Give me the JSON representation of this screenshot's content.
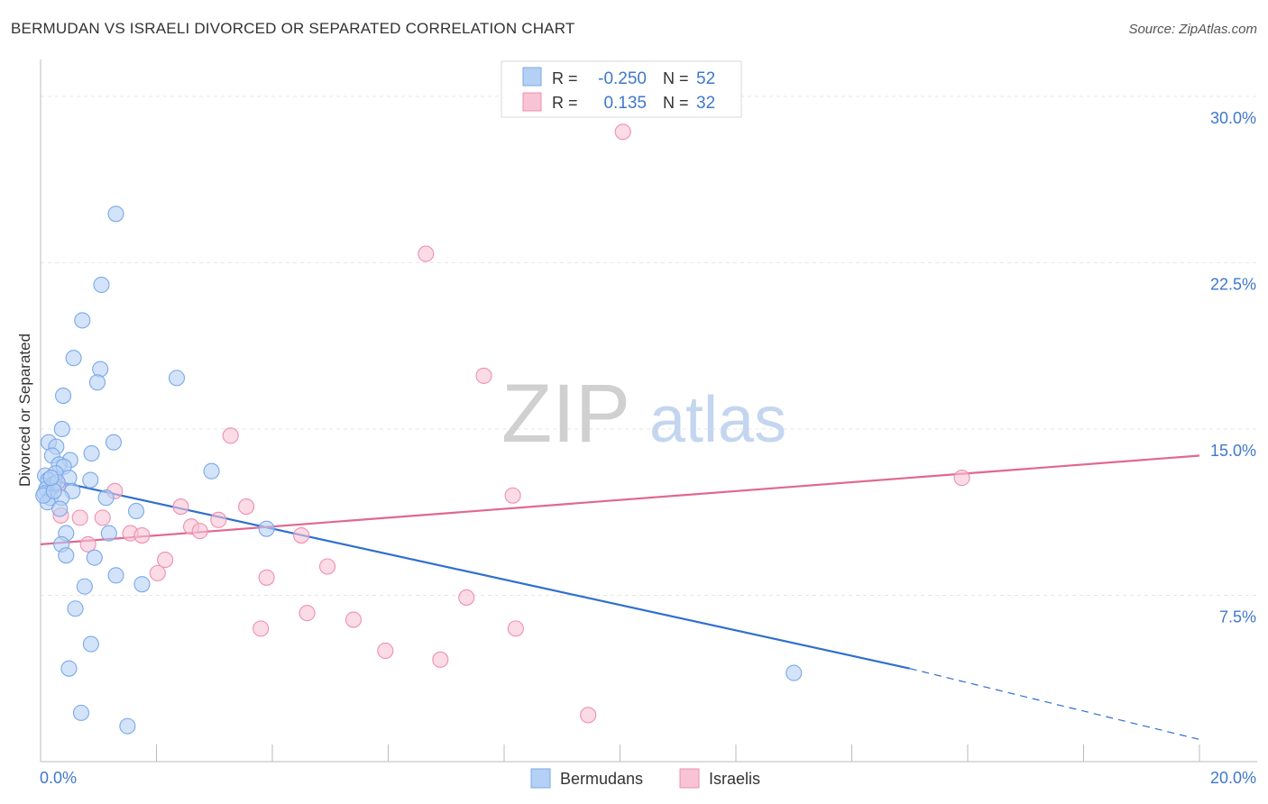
{
  "title": "BERMUDAN VS ISRAELI DIVORCED OR SEPARATED CORRELATION CHART",
  "source": "Source: ZipAtlas.com",
  "watermark": {
    "zip": "ZIP",
    "atlas": "atlas"
  },
  "colors": {
    "blue": "#7aa9e8",
    "blue_fill": "#b5d0f5",
    "blue_line": "#2f6fcf",
    "pink": "#ef8fb0",
    "pink_fill": "#f7c3d5",
    "pink_line": "#e06890",
    "axis_text": "#3f78cc",
    "grid": "#e6e6e6"
  },
  "legend": {
    "rows": [
      {
        "r_label": "R =",
        "r_value": "-0.250",
        "n_label": "N =",
        "n_value": "52"
      },
      {
        "r_label": "R =",
        "r_value": "0.135",
        "n_label": "N =",
        "n_value": "32"
      }
    ]
  },
  "chart_data": {
    "type": "scatter",
    "title": "BERMUDAN VS ISRAELI DIVORCED OR SEPARATED CORRELATION CHART",
    "xlabel": "",
    "ylabel": "Divorced or Separated",
    "xlim": [
      0,
      20
    ],
    "ylim": [
      0,
      31.5
    ],
    "x_ticks": [
      "0.0%",
      "20.0%"
    ],
    "y_ticks": [
      {
        "value": 7.5,
        "label": "7.5%"
      },
      {
        "value": 15.0,
        "label": "15.0%"
      },
      {
        "value": 22.5,
        "label": "22.5%"
      },
      {
        "value": 30.0,
        "label": "30.0%"
      }
    ],
    "series": [
      {
        "name": "Bermudans",
        "r": -0.25,
        "n": 52,
        "trend": {
          "x0": 0.0,
          "y0": 12.8,
          "x1": 15.0,
          "y1": 4.2,
          "dash_to_x": 20.0,
          "dash_to_y": 1.0
        },
        "points": [
          [
            1.3,
            24.7
          ],
          [
            1.05,
            21.5
          ],
          [
            0.72,
            19.9
          ],
          [
            0.57,
            18.2
          ],
          [
            1.03,
            17.7
          ],
          [
            2.35,
            17.3
          ],
          [
            0.98,
            17.1
          ],
          [
            0.39,
            16.5
          ],
          [
            0.37,
            15.0
          ],
          [
            0.14,
            14.4
          ],
          [
            1.26,
            14.4
          ],
          [
            0.27,
            14.2
          ],
          [
            0.88,
            13.9
          ],
          [
            0.2,
            13.8
          ],
          [
            0.51,
            13.6
          ],
          [
            0.32,
            13.4
          ],
          [
            0.4,
            13.3
          ],
          [
            2.95,
            13.1
          ],
          [
            0.08,
            12.9
          ],
          [
            0.26,
            13.0
          ],
          [
            0.49,
            12.8
          ],
          [
            0.13,
            12.7
          ],
          [
            0.86,
            12.7
          ],
          [
            0.22,
            12.5
          ],
          [
            0.1,
            12.3
          ],
          [
            0.55,
            12.2
          ],
          [
            0.07,
            12.1
          ],
          [
            1.13,
            11.9
          ],
          [
            0.17,
            11.9
          ],
          [
            0.36,
            11.9
          ],
          [
            0.12,
            11.7
          ],
          [
            0.33,
            11.4
          ],
          [
            1.65,
            11.3
          ],
          [
            3.9,
            10.5
          ],
          [
            0.44,
            10.3
          ],
          [
            1.18,
            10.3
          ],
          [
            0.36,
            9.8
          ],
          [
            0.44,
            9.3
          ],
          [
            0.93,
            9.2
          ],
          [
            1.3,
            8.4
          ],
          [
            1.75,
            8.0
          ],
          [
            0.76,
            7.9
          ],
          [
            0.6,
            6.9
          ],
          [
            0.87,
            5.3
          ],
          [
            0.49,
            4.2
          ],
          [
            0.7,
            2.2
          ],
          [
            1.5,
            1.6
          ],
          [
            13.0,
            4.0
          ],
          [
            0.05,
            12.0
          ],
          [
            0.29,
            12.6
          ],
          [
            0.23,
            12.2
          ],
          [
            0.18,
            12.8
          ]
        ]
      },
      {
        "name": "Israelis",
        "r": 0.135,
        "n": 32,
        "trend": {
          "x0": 0.0,
          "y0": 9.8,
          "x1": 20.0,
          "y1": 13.8
        },
        "points": [
          [
            10.05,
            28.4
          ],
          [
            6.65,
            22.9
          ],
          [
            7.65,
            17.4
          ],
          [
            3.28,
            14.7
          ],
          [
            15.9,
            12.8
          ],
          [
            0.3,
            12.5
          ],
          [
            1.28,
            12.2
          ],
          [
            8.15,
            12.0
          ],
          [
            2.42,
            11.5
          ],
          [
            3.55,
            11.5
          ],
          [
            0.35,
            11.1
          ],
          [
            0.68,
            11.0
          ],
          [
            1.07,
            11.0
          ],
          [
            3.07,
            10.9
          ],
          [
            2.6,
            10.6
          ],
          [
            2.75,
            10.4
          ],
          [
            1.55,
            10.3
          ],
          [
            1.75,
            10.2
          ],
          [
            4.5,
            10.2
          ],
          [
            0.82,
            9.8
          ],
          [
            2.15,
            9.1
          ],
          [
            4.95,
            8.8
          ],
          [
            2.02,
            8.5
          ],
          [
            3.9,
            8.3
          ],
          [
            7.35,
            7.4
          ],
          [
            4.6,
            6.7
          ],
          [
            5.4,
            6.4
          ],
          [
            3.8,
            6.0
          ],
          [
            8.2,
            6.0
          ],
          [
            5.95,
            5.0
          ],
          [
            6.9,
            4.6
          ],
          [
            9.45,
            2.1
          ]
        ]
      }
    ],
    "legend_position": "bottom-center"
  }
}
